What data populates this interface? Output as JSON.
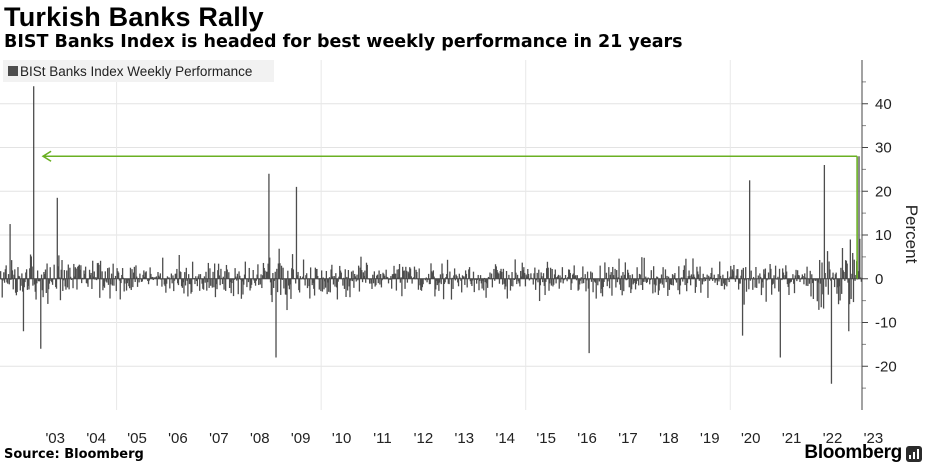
{
  "header": {
    "title": "Turkish Banks Rally",
    "subtitle": "BIST Banks Index is headed for best weekly performance in 21 years"
  },
  "footer": {
    "source": "Source: Bloomberg",
    "brand": "Bloomberg"
  },
  "chart_data": {
    "type": "bar",
    "title": "Turkish Banks Rally",
    "subtitle": "BIST Banks Index is headed for best weekly performance in 21 years",
    "xlabel": "",
    "ylabel": "Percent",
    "ylim": [
      -30,
      50
    ],
    "yticks": [
      -20,
      -10,
      0,
      10,
      20,
      30,
      40
    ],
    "xticks": [
      "'03",
      "'04",
      "'05",
      "'06",
      "'07",
      "'08",
      "'09",
      "'10",
      "'11",
      "'12",
      "'13",
      "'14",
      "'15",
      "'16",
      "'17",
      "'18",
      "'19",
      "'20",
      "'21",
      "'22",
      "'23"
    ],
    "xrange": [
      2002.15,
      2023.22
    ],
    "grid": true,
    "legend_position": "top-left",
    "color": "#4d4d4d",
    "annotation_color": "#6ab023",
    "series": [
      {
        "name": "BISt Banks Index Weekly Performance",
        "highlights": [
          {
            "date": "2002-12",
            "value": 44
          },
          {
            "date": "2002-05",
            "value": 12.5
          },
          {
            "date": "2002-09",
            "value": -12
          },
          {
            "date": "2003-02",
            "value": -16
          },
          {
            "date": "2003-07",
            "value": 18.5
          },
          {
            "date": "2008-09",
            "value": 24
          },
          {
            "date": "2008-11",
            "value": -18
          },
          {
            "date": "2009-05",
            "value": 21
          },
          {
            "date": "2016-07",
            "value": -17
          },
          {
            "date": "2020-04",
            "value": -13
          },
          {
            "date": "2020-06",
            "value": 22.5
          },
          {
            "date": "2021-03",
            "value": -18
          },
          {
            "date": "2022-04",
            "value": 26
          },
          {
            "date": "2022-06",
            "value": -24
          },
          {
            "date": "2022-11",
            "value": -12
          },
          {
            "date": "2023-02",
            "value": 28
          }
        ]
      }
    ],
    "annotations": [
      {
        "type": "arrow",
        "value": 28,
        "from": "2023-02",
        "to": "2002-12"
      }
    ]
  }
}
